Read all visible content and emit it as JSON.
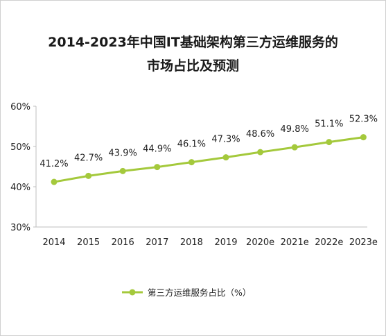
{
  "chart_data": {
    "type": "line",
    "title_line1": "2014-2023年中国IT基础架构第三方运维服务的",
    "title_line2": "市场占比及预测",
    "categories": [
      "2014",
      "2015",
      "2016",
      "2017",
      "2018",
      "2019",
      "2020e",
      "2021e",
      "2022e",
      "2023e"
    ],
    "series": [
      {
        "name": "第三方运维服务占比（%）",
        "values": [
          41.2,
          42.7,
          43.9,
          44.9,
          46.1,
          47.3,
          48.6,
          49.8,
          51.1,
          52.3
        ],
        "labels": [
          "41.2%",
          "42.7%",
          "43.9%",
          "44.9%",
          "46.1%",
          "47.3%",
          "48.6%",
          "49.8%",
          "51.1%",
          "52.3%"
        ],
        "color": "#a4c93c"
      }
    ],
    "ylim": [
      30,
      60
    ],
    "yticks": [
      30,
      40,
      50,
      60
    ],
    "ytick_labels": [
      "30%",
      "40%",
      "50%",
      "60%"
    ],
    "grid": false,
    "legend_position": "bottom"
  }
}
